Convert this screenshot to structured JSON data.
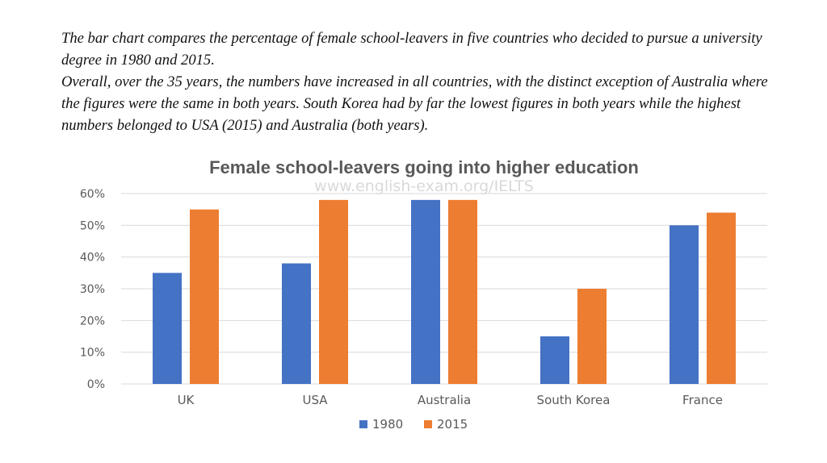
{
  "intro": {
    "paragraph1": "The bar chart compares the percentage of female school-leavers in five countries who decided to pursue a university degree in 1980 and 2015.",
    "paragraph2": "Overall, over the 35 years, the numbers have increased in all countries, with the distinct exception of Australia where the figures were the same in both years. South Korea had  by far the lowest figures in both years while the highest numbers belonged to USA (2015) and Australia (both years)."
  },
  "watermark": "www.english-exam.org/IELTS",
  "chart_data": {
    "type": "bar",
    "title": "Female school-leavers going into higher education",
    "xlabel": "",
    "ylabel": "",
    "categories": [
      "UK",
      "USA",
      "Australia",
      "South Korea",
      "France"
    ],
    "series": [
      {
        "name": "1980",
        "values": [
          35,
          38,
          58,
          15,
          50
        ],
        "color": "#4472C4"
      },
      {
        "name": "2015",
        "values": [
          55,
          58,
          58,
          30,
          54
        ],
        "color": "#ED7D31"
      }
    ],
    "ylim": [
      0,
      60
    ],
    "yticks": [
      0,
      10,
      20,
      30,
      40,
      50,
      60
    ],
    "ytick_labels": [
      "0%",
      "10%",
      "20%",
      "30%",
      "40%",
      "50%",
      "60%"
    ],
    "grid": true,
    "gridline_color": "#d9d9d9",
    "legend_position": "bottom"
  }
}
